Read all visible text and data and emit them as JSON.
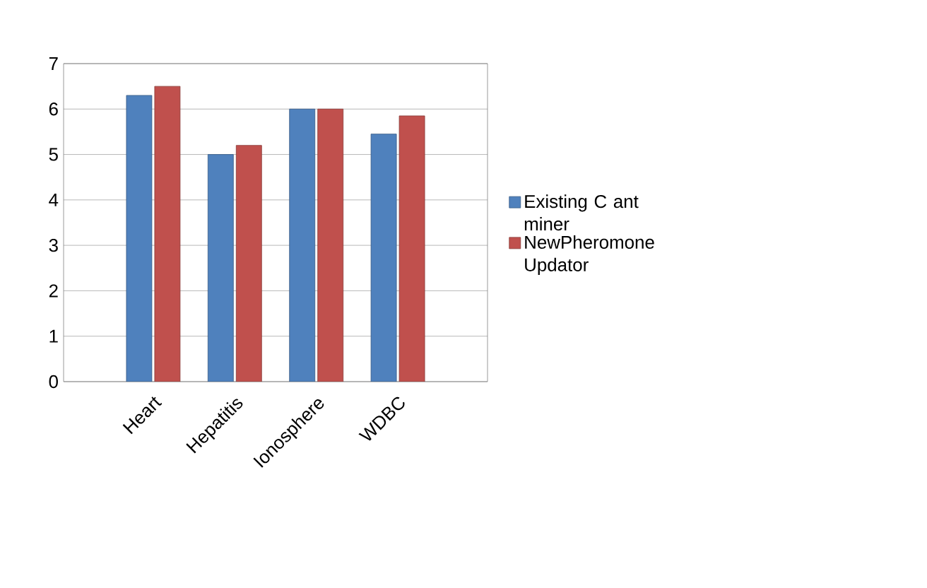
{
  "chart_data": {
    "type": "bar",
    "categories": [
      "Heart",
      "Hepatitis",
      "Ionosphere",
      "WDBC"
    ],
    "series": [
      {
        "name": "Existing C ant miner",
        "color": "#4f81bd",
        "values": [
          6.3,
          5.0,
          6.0,
          5.45
        ]
      },
      {
        "name": "NewPheromone Updator",
        "color": "#c0504d",
        "values": [
          6.5,
          5.2,
          6.0,
          5.85
        ]
      }
    ],
    "ylim": [
      0,
      7
    ],
    "yticks": [
      0,
      1,
      2,
      3,
      4,
      5,
      6,
      7
    ],
    "grid": "y",
    "legend": "right"
  }
}
